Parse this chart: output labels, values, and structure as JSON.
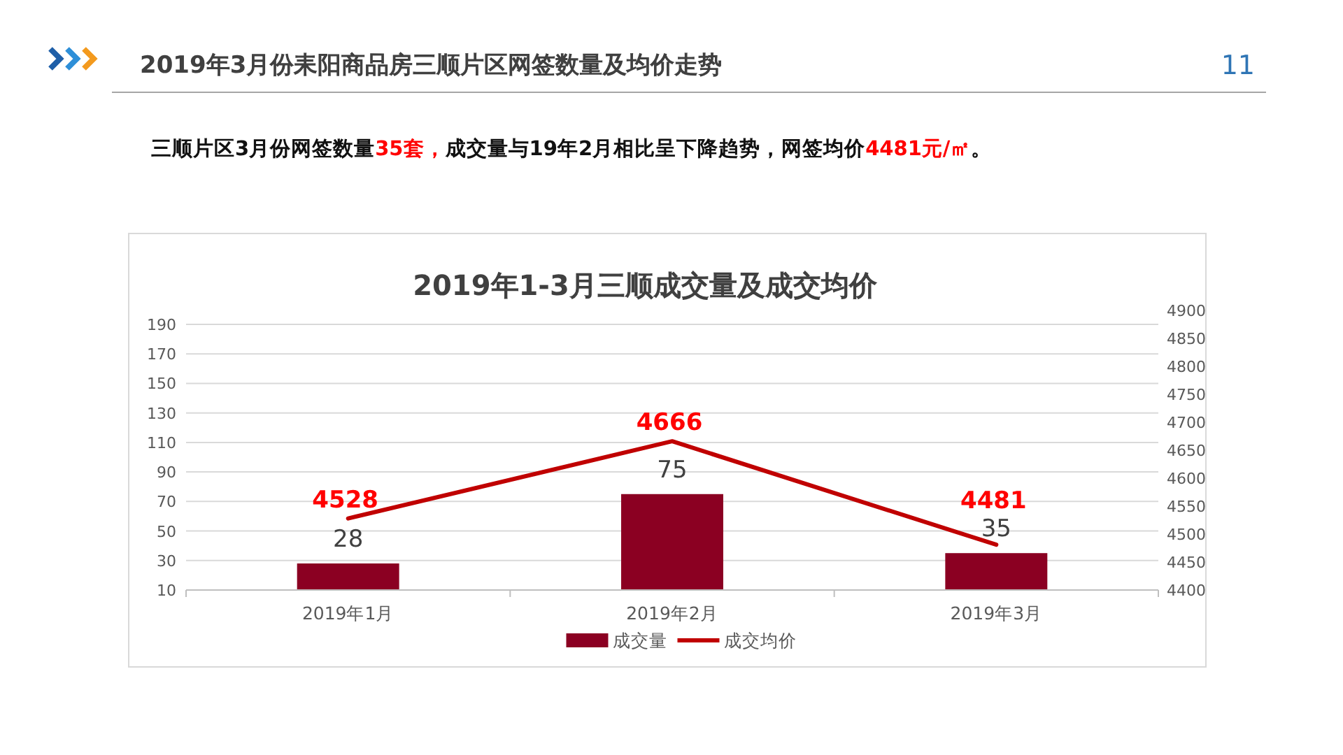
{
  "chart_data": {
    "type": "bar",
    "title": "2019年1-3月三顺成交量及成交均价",
    "subtitle": "2019年3月份耒阳商品房三顺片区网签数量及均价走势",
    "annotations": [
      "11",
      "三顺片区3月份网签数量",
      "35套，",
      "成交量与19年2月相比呈下降趋势，网签均价",
      "4481元/㎡",
      "。"
    ],
    "categories": [
      "2019年1月",
      "2019年2月",
      "2019年3月"
    ],
    "series": [
      {
        "name": "成交量",
        "color": "#8b0022",
        "values": [
          28,
          75,
          35
        ]
      },
      {
        "name": "成交均价",
        "type": "line",
        "axis": "y2",
        "color": "#c00000",
        "values": [
          4528,
          4666,
          4481
        ]
      }
    ],
    "ylim": [
      10,
      190
    ],
    "yticks": [
      10,
      30,
      50,
      70,
      90,
      110,
      130,
      150,
      170,
      190
    ],
    "y2lim": [
      4400,
      4900
    ],
    "y2ticks": [
      4400,
      4450,
      4500,
      4550,
      4600,
      4650,
      4700,
      4750,
      4800,
      4850,
      4900
    ],
    "grid": "y",
    "legend": "bottom",
    "data_labels": true
  }
}
